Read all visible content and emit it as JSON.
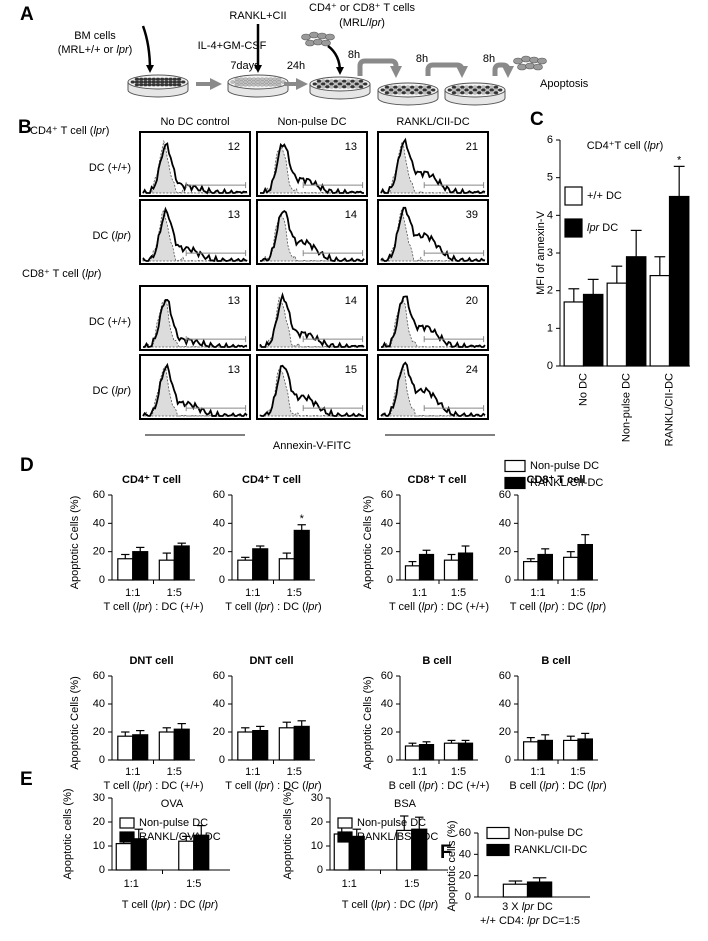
{
  "panel_labels": [
    "A",
    "B",
    "C",
    "D",
    "E",
    "F"
  ],
  "panel_a": {
    "bm_cells": "BM cells",
    "bm_source": "(MRL+/+ or lpr)",
    "pulse": "RANKL+CII",
    "culture": "IL-4+GM-CSF",
    "culture_time": "7days",
    "rest_time": "24h",
    "t_cells": "CD4⁺ or CD8⁺ T cells",
    "t_source": "(MRL/lpr)",
    "incubations": [
      "8h",
      "8h",
      "8h"
    ],
    "outcome": "Apoptosis"
  },
  "panel_b": {
    "columns": [
      "No DC control",
      "Non-pulse DC",
      "RANKL/CII-DC"
    ],
    "groups": [
      {
        "title": "CD4⁺ T cell (lpr)",
        "rows": [
          {
            "label": "DC (+/+)",
            "values": [
              12,
              13,
              21
            ]
          },
          {
            "label": "DC (lpr)",
            "values": [
              13,
              14,
              39
            ]
          }
        ]
      },
      {
        "title": "CD8⁺ T cell (lpr)",
        "rows": [
          {
            "label": "DC (+/+)",
            "values": [
              13,
              14,
              20
            ]
          },
          {
            "label": "DC (lpr)",
            "values": [
              13,
              15,
              24
            ]
          }
        ]
      }
    ],
    "x_label": "Annexin-V-FITC"
  },
  "chart_data": [
    {
      "type": "bar",
      "title": "CD4⁺T cell (lpr)",
      "ylabel": "MFI of annexin-V",
      "categories": [
        "No DC",
        "Non-pulse DC",
        "RANKL/CII-DC"
      ],
      "series": [
        {
          "name": "+/+ DC",
          "color": "#ffffff",
          "values": [
            1.7,
            2.2,
            2.4
          ],
          "errors": [
            0.35,
            0.45,
            0.5
          ]
        },
        {
          "name": "lpr DC",
          "color": "#000000",
          "values": [
            1.9,
            2.9,
            4.5
          ],
          "errors": [
            0.4,
            0.7,
            0.8
          ]
        }
      ],
      "ylim": [
        0,
        6
      ],
      "yticks": [
        0,
        1,
        2,
        3,
        4,
        5,
        6
      ],
      "legend": "upper left",
      "annotation": "*"
    },
    {
      "type": "bar",
      "title": "CD4⁺ T cell",
      "ylabel": "Apoptotic Cells (%)",
      "xlabel": "T cell (lpr) : DC (+/+)",
      "categories": [
        "1:1",
        "1:5"
      ],
      "series": [
        {
          "color": "#ffffff",
          "values": [
            15,
            14
          ],
          "errors": [
            3,
            5
          ]
        },
        {
          "color": "#000000",
          "values": [
            20,
            24
          ],
          "errors": [
            3,
            2
          ]
        }
      ],
      "ylim": [
        0,
        60
      ],
      "yticks": [
        0,
        20,
        40,
        60
      ]
    },
    {
      "type": "bar",
      "title": "CD4⁺ T cell",
      "xlabel": "T cell (lpr) : DC (lpr)",
      "categories": [
        "1:1",
        "1:5"
      ],
      "series": [
        {
          "color": "#ffffff",
          "values": [
            14,
            15
          ],
          "errors": [
            2,
            4
          ]
        },
        {
          "color": "#000000",
          "values": [
            22,
            35
          ],
          "errors": [
            2,
            4
          ]
        }
      ],
      "ylim": [
        0,
        60
      ],
      "yticks": [
        0,
        20,
        40,
        60
      ],
      "annotation": "*"
    },
    {
      "type": "bar",
      "title": "CD8⁺ T cell",
      "ylabel": "Apoptotic Cells (%)",
      "xlabel": "T cell (lpr) : DC (+/+)",
      "categories": [
        "1:1",
        "1:5"
      ],
      "series": [
        {
          "color": "#ffffff",
          "values": [
            10,
            14
          ],
          "errors": [
            3,
            4
          ]
        },
        {
          "color": "#000000",
          "values": [
            18,
            19
          ],
          "errors": [
            3,
            5
          ]
        }
      ],
      "ylim": [
        0,
        60
      ],
      "yticks": [
        0,
        20,
        40,
        60
      ]
    },
    {
      "type": "bar",
      "title": "CD8⁺ T cell",
      "xlabel": "T cell (lpr) : DC (lpr)",
      "categories": [
        "1:1",
        "1:5"
      ],
      "series": [
        {
          "name": "Non-pulse DC",
          "color": "#ffffff",
          "values": [
            13,
            16
          ],
          "errors": [
            2,
            4
          ]
        },
        {
          "name": "RANKL/CII-DC",
          "color": "#000000",
          "values": [
            18,
            25
          ],
          "errors": [
            4,
            7
          ]
        }
      ],
      "ylim": [
        0,
        60
      ],
      "yticks": [
        0,
        20,
        40,
        60
      ],
      "legend": "upper right"
    },
    {
      "type": "bar",
      "title": "DNT cell",
      "ylabel": "Apoptotic Cells (%)",
      "xlabel": "T cell (lpr) : DC (+/+)",
      "categories": [
        "1:1",
        "1:5"
      ],
      "series": [
        {
          "color": "#ffffff",
          "values": [
            17,
            20
          ],
          "errors": [
            3,
            3
          ]
        },
        {
          "color": "#000000",
          "values": [
            18,
            22
          ],
          "errors": [
            3,
            4
          ]
        }
      ],
      "ylim": [
        0,
        60
      ],
      "yticks": [
        0,
        20,
        40,
        60
      ]
    },
    {
      "type": "bar",
      "title": "DNT cell",
      "xlabel": "T cell (lpr) : DC (lpr)",
      "categories": [
        "1:1",
        "1:5"
      ],
      "series": [
        {
          "color": "#ffffff",
          "values": [
            20,
            23
          ],
          "errors": [
            3,
            4
          ]
        },
        {
          "color": "#000000",
          "values": [
            21,
            24
          ],
          "errors": [
            3,
            4
          ]
        }
      ],
      "ylim": [
        0,
        60
      ],
      "yticks": [
        0,
        20,
        40,
        60
      ]
    },
    {
      "type": "bar",
      "title": "B cell",
      "ylabel": "Apoptotic Cells (%)",
      "xlabel": "B cell (lpr) : DC (+/+)",
      "categories": [
        "1:1",
        "1:5"
      ],
      "series": [
        {
          "color": "#ffffff",
          "values": [
            10,
            12
          ],
          "errors": [
            2,
            2
          ]
        },
        {
          "color": "#000000",
          "values": [
            11,
            12
          ],
          "errors": [
            2,
            2
          ]
        }
      ],
      "ylim": [
        0,
        60
      ],
      "yticks": [
        0,
        20,
        40,
        60
      ]
    },
    {
      "type": "bar",
      "title": "B cell",
      "xlabel": "B cell (lpr) : DC (lpr)",
      "categories": [
        "1:1",
        "1:5"
      ],
      "series": [
        {
          "color": "#ffffff",
          "values": [
            13,
            14
          ],
          "errors": [
            3,
            3
          ]
        },
        {
          "color": "#000000",
          "values": [
            14,
            15
          ],
          "errors": [
            4,
            4
          ]
        }
      ],
      "ylim": [
        0,
        60
      ],
      "yticks": [
        0,
        20,
        40,
        60
      ]
    },
    {
      "type": "bar",
      "title": "OVA",
      "ylabel": "Apoptotic cells (%)",
      "xlabel": "T cell (lpr) : DC (lpr)",
      "categories": [
        "1:1",
        "1:5"
      ],
      "series": [
        {
          "name": "Non-pulse DC",
          "color": "#ffffff",
          "values": [
            11,
            12
          ],
          "errors": [
            2,
            2
          ]
        },
        {
          "name": "RANKL/OVA-DC",
          "color": "#000000",
          "values": [
            13,
            14.5
          ],
          "errors": [
            4,
            4
          ]
        }
      ],
      "ylim": [
        0,
        30
      ],
      "yticks": [
        0,
        10,
        20,
        30
      ],
      "legend": "upper left"
    },
    {
      "type": "bar",
      "title": "BSA",
      "ylabel": "Apoptotic cells (%)",
      "xlabel": "T cell (lpr) : DC (lpr)",
      "categories": [
        "1:1",
        "1:5"
      ],
      "series": [
        {
          "name": "Non-pulse DC",
          "color": "#ffffff",
          "values": [
            15,
            16.5
          ],
          "errors": [
            4,
            6
          ]
        },
        {
          "name": "RANKL/BSA-DC",
          "color": "#000000",
          "values": [
            14,
            17
          ],
          "errors": [
            3,
            5
          ]
        }
      ],
      "ylim": [
        0,
        30
      ],
      "yticks": [
        0,
        10,
        20,
        30
      ],
      "legend": "upper left"
    },
    {
      "type": "bar",
      "ylabel": "Apoptotic cells (%)",
      "xlabel": "+/+ CD4: lpr DC=1:5",
      "categories": [
        "3 X lpr DC"
      ],
      "series": [
        {
          "name": "Non-pulse DC",
          "color": "#ffffff",
          "values": [
            12
          ],
          "errors": [
            3
          ]
        },
        {
          "name": "RANKL/CII-DC",
          "color": "#000000",
          "values": [
            14
          ],
          "errors": [
            4
          ]
        }
      ],
      "ylim": [
        0,
        60
      ],
      "yticks": [
        0,
        20,
        40,
        60
      ],
      "legend": "upper left"
    }
  ]
}
